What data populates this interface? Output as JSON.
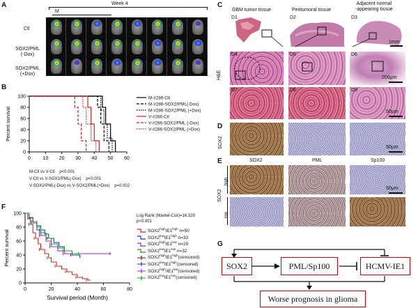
{
  "panels": {
    "A": "A",
    "B": "B",
    "C": "C",
    "D": "D",
    "E": "E",
    "F": "F",
    "G": "G"
  },
  "panelA": {
    "week_label": "Week 4",
    "m_label": "M",
    "rows": [
      "Ctl",
      "SOX2/PML\n(-Dox)",
      "SOX2/PML\n(+Dox)"
    ]
  },
  "panelB": {
    "stats": [
      "M-Ctl vs V-Ctl    p<0.001",
      "V-Ctl vs V-SOX2/PML(-Dox)    p<0.001",
      "V-SOX2/PML(-Dox) vs V-SOX2/PML(+Dox)    p=0.002"
    ]
  },
  "panelC": {
    "col_titles": [
      "GBM tumor tissue",
      "Peritumoral tissue",
      "Adjacent normal\n-appearing tissue"
    ],
    "row_label": "H&E",
    "tiles": [
      "D1",
      "D2",
      "D3",
      "D4",
      "D5",
      "D6",
      "D7",
      "D8",
      "D9"
    ],
    "scales": [
      "1mm",
      "200μm",
      "50μm"
    ]
  },
  "panelD": {
    "row_label": "SOX2",
    "scale": "50μm"
  },
  "panelE": {
    "col_titles": [
      "SOX2",
      "PML",
      "Sp100"
    ],
    "row_label": "SOX2",
    "levels": [
      "high",
      "low"
    ],
    "scale": "50μm"
  },
  "panelF": {
    "test_title": "Log Rank (Mantel-Cox)=16.329",
    "p_value": "p<0.001",
    "legend": [
      {
        "label": "SOX2highIE1highn=50",
        "main": "SOX2",
        "sup1": "high",
        "mid": "IE1",
        "sup2": "high",
        "tail": " n=50",
        "color": "#d42020",
        "style": "step"
      },
      {
        "label": "SOX2lowIE1highn=33",
        "main": "SOX2",
        "sup1": "low",
        "mid": "IE1",
        "sup2": "high",
        "tail": " n=33",
        "color": "#1a2fd0",
        "style": "step"
      },
      {
        "label": "SOX2highIE1lown=29",
        "main": "SOX2",
        "sup1": "high",
        "mid": "IE1",
        "sup2": "low",
        "tail": " n=29",
        "color": "#a020d0",
        "style": "step"
      },
      {
        "label": "SOX2lowIE1lown=32",
        "main": "SOX2",
        "sup1": "low",
        "mid": "IE1",
        "sup2": "low",
        "tail": " n=32",
        "color": "#12a012",
        "style": "step"
      },
      {
        "label": "SOX2highIE1high(censored)",
        "main": "SOX2",
        "sup1": "high",
        "mid": "IE1",
        "sup2": "high",
        "tail": "(censored)",
        "color": "#8a0000",
        "style": "cens"
      },
      {
        "label": "SOX2lowIE1high(censored)",
        "main": "SOX2",
        "sup1": "low",
        "mid": "IE1",
        "sup2": "high",
        "tail": "(censored)",
        "color": "#1a2fd0",
        "style": "cens"
      },
      {
        "label": "SOX2high/IE1low(censored)",
        "main": "SOX2",
        "sup1": "high",
        "mid": "/IE1",
        "sup2": "low",
        "tail": "(censored)",
        "color": "#a020d0",
        "style": "cens"
      },
      {
        "label": "SOX2lowIE1low(censored)",
        "main": "SOX2",
        "sup1": "low",
        "mid": "IE1",
        "sup2": "low",
        "tail": "(censored)",
        "color": "#12a012",
        "style": "cens"
      }
    ]
  },
  "panelG": {
    "boxes": [
      "SOX2",
      "PML/Sp100",
      "HCMV-IE1",
      "Worse prognosis in glioma"
    ]
  },
  "chart_data": [
    {
      "type": "line",
      "panel": "B",
      "xlabel": "Days post-transplantation",
      "ylabel": "Percent survival",
      "xlim": [
        0,
        60
      ],
      "ylim": [
        0,
        100
      ],
      "xticks": [
        0,
        10,
        20,
        30,
        40,
        50,
        60
      ],
      "yticks": [
        0,
        20,
        40,
        60,
        80,
        100
      ],
      "legend_position": "top-right",
      "series": [
        {
          "name": "M-#286-Ctl",
          "color": "#000000",
          "dash": "solid",
          "x": [
            0,
            45,
            45,
            47,
            47,
            50,
            50,
            53,
            53
          ],
          "y": [
            100,
            100,
            80,
            80,
            50,
            50,
            20,
            20,
            0
          ]
        },
        {
          "name": "M-#286-SOX2/PML(-Dox)",
          "color": "#000000",
          "dash": "dashed",
          "x": [
            0,
            42,
            42,
            44,
            44,
            46,
            46,
            49,
            49
          ],
          "y": [
            100,
            100,
            80,
            80,
            50,
            50,
            20,
            20,
            0
          ]
        },
        {
          "name": "M-#286-SOX2/PML (+Dox)",
          "color": "#000000",
          "dash": "dotted",
          "x": [
            0,
            44,
            44,
            46,
            46,
            48,
            48,
            51,
            51
          ],
          "y": [
            100,
            100,
            75,
            75,
            50,
            50,
            25,
            25,
            0
          ]
        },
        {
          "name": "V-#286-Ctl",
          "color": "#d42020",
          "dash": "solid",
          "x": [
            0,
            36,
            36,
            38,
            38,
            40,
            40,
            43,
            43
          ],
          "y": [
            100,
            100,
            80,
            80,
            50,
            50,
            20,
            20,
            0
          ]
        },
        {
          "name": "V-#286-SOX2/PML (-Dox)",
          "color": "#d42020",
          "dash": "dashed",
          "x": [
            0,
            28,
            28,
            30,
            30,
            32,
            32,
            35,
            35
          ],
          "y": [
            100,
            100,
            80,
            80,
            50,
            50,
            20,
            20,
            0
          ]
        },
        {
          "name": "V-#286-SOX2/PML (+Dox)",
          "color": "#d42020",
          "dash": "dotted",
          "x": [
            0,
            33,
            33,
            35,
            35,
            38,
            38,
            41,
            41
          ],
          "y": [
            100,
            100,
            80,
            80,
            50,
            50,
            20,
            20,
            0
          ]
        }
      ]
    },
    {
      "type": "line",
      "panel": "F",
      "xlabel": "Survival period (Month)",
      "ylabel": "Percent survival",
      "xlim": [
        0,
        80
      ],
      "ylim": [
        0,
        100
      ],
      "xticks": [
        0,
        20,
        40,
        60,
        80
      ],
      "yticks": [
        0,
        20,
        40,
        60,
        80,
        100
      ],
      "series": [
        {
          "name": "SOX2highIE1high n=50",
          "color": "#d42020",
          "x": [
            0,
            2,
            4,
            6,
            8,
            10,
            12,
            15,
            18,
            20,
            24,
            28,
            32,
            36,
            40,
            44,
            48,
            50
          ],
          "y": [
            100,
            92,
            84,
            72,
            64,
            56,
            48,
            42,
            36,
            30,
            24,
            20,
            16,
            12,
            8,
            6,
            4,
            4
          ]
        },
        {
          "name": "SOX2lowIE1high n=33",
          "color": "#1a2fd0",
          "x": [
            0,
            3,
            6,
            9,
            12,
            15,
            18,
            22,
            26,
            30,
            36,
            42
          ],
          "y": [
            100,
            94,
            88,
            82,
            76,
            70,
            64,
            58,
            52,
            46,
            40,
            36
          ]
        },
        {
          "name": "SOX2highIE1low n=29",
          "color": "#a020d0",
          "x": [
            0,
            3,
            6,
            9,
            12,
            16,
            20,
            25,
            30,
            40,
            66
          ],
          "y": [
            100,
            93,
            86,
            76,
            68,
            60,
            52,
            46,
            42,
            42,
            42
          ]
        },
        {
          "name": "SOX2lowIE1low n=32",
          "color": "#12a012",
          "x": [
            0,
            3,
            6,
            9,
            12,
            16,
            20,
            25,
            30,
            36,
            42
          ],
          "y": [
            100,
            94,
            88,
            80,
            72,
            64,
            56,
            50,
            46,
            42,
            42
          ]
        }
      ]
    }
  ]
}
